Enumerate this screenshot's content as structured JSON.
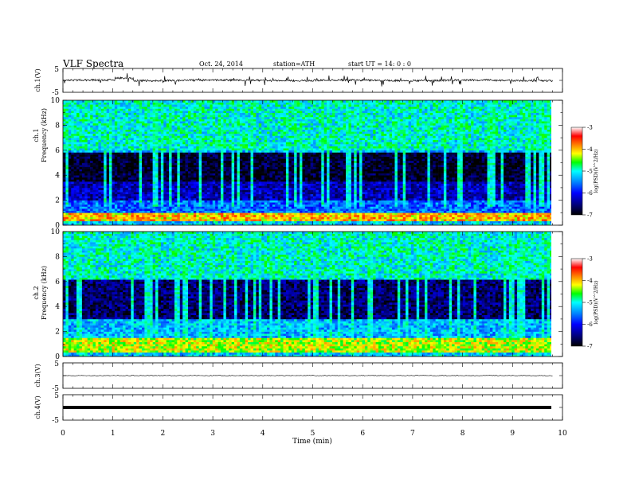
{
  "header": {
    "title": "VLF  Spectra",
    "date": "Oct. 24, 2014",
    "station": "station=ATH",
    "start": "start  UT  =   14: 0  : 0"
  },
  "chart_data": [
    {
      "type": "line",
      "channel": "ch.1",
      "ylabel": "ch.1(V)",
      "ylim": [
        -5,
        5
      ],
      "yticks": [
        "5",
        "-5"
      ],
      "xlim": [
        0,
        10
      ],
      "baseline_V": 0,
      "trace": "noisy waveform around 0 V with sporadic spikes to about ±2 V"
    },
    {
      "type": "heatmap",
      "channel": "ch.1",
      "ylabel": "ch.1\nFrequency  (kHz)",
      "ylim": [
        0,
        10
      ],
      "yticks": [
        "0",
        "2",
        "4",
        "6",
        "8",
        "10"
      ],
      "xlim": [
        0,
        10
      ],
      "data_end_min": 9.8,
      "colorbar": {
        "label": "log(PSD)(V^2/Hz)",
        "range": [
          -7,
          -3
        ],
        "ticks": [
          "-3",
          "-4",
          "-5",
          "-6",
          "-7"
        ]
      },
      "bands": [
        {
          "from_khz": 6.0,
          "to_khz": 10.0,
          "mean_logpsd": -5.0
        },
        {
          "from_khz": 5.9,
          "to_khz": 6.1,
          "mean_logpsd": -5.3
        },
        {
          "from_khz": 3.5,
          "to_khz": 5.8,
          "mean_logpsd": -6.85
        },
        {
          "from_khz": 2.0,
          "to_khz": 3.5,
          "mean_logpsd": -6.3
        },
        {
          "from_khz": 1.0,
          "to_khz": 2.0,
          "mean_logpsd": -5.6
        },
        {
          "from_khz": 0.3,
          "to_khz": 1.0,
          "mean_logpsd": -4.0
        }
      ]
    },
    {
      "type": "heatmap",
      "channel": "ch.2",
      "ylabel": "ch.2\nFrequency  (kHz)",
      "ylim": [
        0,
        10
      ],
      "yticks": [
        "0",
        "2",
        "4",
        "6",
        "8",
        "10"
      ],
      "xlim": [
        0,
        10
      ],
      "data_end_min": 9.8,
      "colorbar": {
        "label": "log(PSD)(V^2/Hz)",
        "range": [
          -7,
          -3
        ],
        "ticks": [
          "-3",
          "-4",
          "-5",
          "-6",
          "-7"
        ]
      },
      "bands": [
        {
          "from_khz": 6.2,
          "to_khz": 10.0,
          "mean_logpsd": -5.0
        },
        {
          "from_khz": 3.0,
          "to_khz": 6.2,
          "mean_logpsd": -6.6
        },
        {
          "from_khz": 1.5,
          "to_khz": 3.0,
          "mean_logpsd": -5.3
        },
        {
          "from_khz": 0.3,
          "to_khz": 1.5,
          "mean_logpsd": -4.3
        }
      ]
    },
    {
      "type": "line",
      "channel": "ch.3",
      "ylabel": "ch.3(V)",
      "ylim": [
        -5,
        5
      ],
      "yticks": [
        "5",
        "-5"
      ],
      "xlim": [
        0,
        10
      ],
      "baseline_V": 0,
      "trace": "nearly flat near 0 V"
    },
    {
      "type": "line",
      "channel": "ch.4",
      "ylabel": "ch.4(V)",
      "ylim": [
        -5,
        5
      ],
      "yticks": [
        "5",
        "-5"
      ],
      "xlim": [
        0,
        10
      ],
      "baseline_V": 0,
      "trace": "thick flat line at 0 V"
    }
  ],
  "xaxis": {
    "label": "Time  (min)",
    "ticks": [
      "0",
      "1",
      "2",
      "3",
      "4",
      "5",
      "6",
      "7",
      "8",
      "9",
      "10"
    ]
  }
}
